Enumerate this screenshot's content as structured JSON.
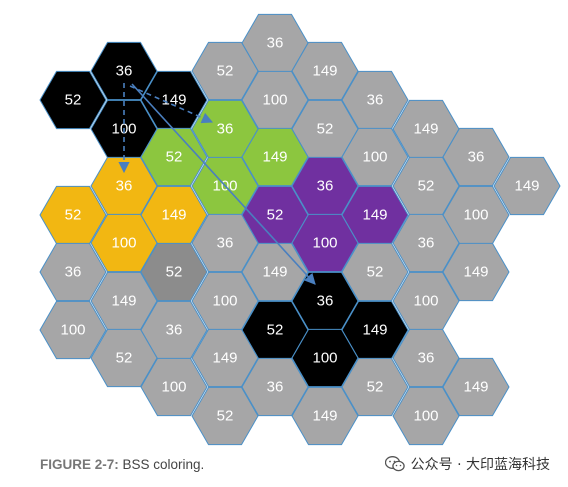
{
  "colors": {
    "gray": "#a6a6a7",
    "black": "#000000",
    "green": "#8cc63f",
    "yellow": "#f2b712",
    "purple": "#7030a0",
    "dark_gray": "#8c8c8c",
    "hex_stroke": "#4a90c8",
    "arrow": "#4a7fbf"
  },
  "hex_cells": [
    {
      "label": "36",
      "color": "gray"
    },
    {
      "label": "52",
      "color": "gray"
    },
    {
      "label": "149",
      "color": "gray"
    },
    {
      "label": "36",
      "color": "black"
    },
    {
      "label": "52",
      "color": "black"
    },
    {
      "label": "149",
      "color": "black"
    },
    {
      "label": "100",
      "color": "black"
    },
    {
      "label": "100",
      "color": "gray"
    },
    {
      "label": "36",
      "color": "gray"
    },
    {
      "label": "36",
      "color": "green"
    },
    {
      "label": "52",
      "color": "gray"
    },
    {
      "label": "149",
      "color": "gray"
    },
    {
      "label": "52",
      "color": "green"
    },
    {
      "label": "149",
      "color": "green"
    },
    {
      "label": "100",
      "color": "gray"
    },
    {
      "label": "36",
      "color": "gray"
    },
    {
      "label": "36",
      "color": "yellow"
    },
    {
      "label": "100",
      "color": "green"
    },
    {
      "label": "36",
      "color": "purple"
    },
    {
      "label": "52",
      "color": "gray"
    },
    {
      "label": "149",
      "color": "gray"
    },
    {
      "label": "52",
      "color": "yellow"
    },
    {
      "label": "149",
      "color": "yellow"
    },
    {
      "label": "52",
      "color": "purple"
    },
    {
      "label": "149",
      "color": "purple"
    },
    {
      "label": "100",
      "color": "gray"
    },
    {
      "label": "100",
      "color": "yellow"
    },
    {
      "label": "36",
      "color": "gray"
    },
    {
      "label": "100",
      "color": "purple"
    },
    {
      "label": "36",
      "color": "gray"
    },
    {
      "label": "36",
      "color": "gray"
    },
    {
      "label": "52",
      "color": "dark_gray"
    },
    {
      "label": "149",
      "color": "gray"
    },
    {
      "label": "52",
      "color": "gray"
    },
    {
      "label": "149",
      "color": "gray"
    },
    {
      "label": "149",
      "color": "gray"
    },
    {
      "label": "100",
      "color": "gray"
    },
    {
      "label": "36",
      "color": "black"
    },
    {
      "label": "100",
      "color": "gray"
    },
    {
      "label": "100",
      "color": "gray"
    },
    {
      "label": "36",
      "color": "gray"
    },
    {
      "label": "52",
      "color": "black"
    },
    {
      "label": "149",
      "color": "black"
    },
    {
      "label": "52",
      "color": "gray"
    },
    {
      "label": "149",
      "color": "gray"
    },
    {
      "label": "100",
      "color": "black"
    },
    {
      "label": "36",
      "color": "gray"
    },
    {
      "label": "100",
      "color": "gray"
    },
    {
      "label": "36",
      "color": "gray"
    },
    {
      "label": "52",
      "color": "gray"
    },
    {
      "label": "149",
      "color": "gray"
    },
    {
      "label": "52",
      "color": "gray"
    },
    {
      "label": "149",
      "color": "gray"
    },
    {
      "label": "100",
      "color": "gray"
    }
  ],
  "arrows": [
    {
      "from": "36 (black)",
      "to": "36 (green)",
      "style": "dashed"
    },
    {
      "from": "36 (black)",
      "to": "36 (yellow)",
      "style": "dashed"
    },
    {
      "from": "36 (black)",
      "to": "36 (black, lower cluster)",
      "style": "solid"
    }
  ],
  "caption": {
    "figure_label": "FIGURE 2-7:",
    "text": " BSS coloring."
  },
  "watermark": {
    "icon": "wechat-icon",
    "text": "公众号 · 大印蓝海科技"
  }
}
